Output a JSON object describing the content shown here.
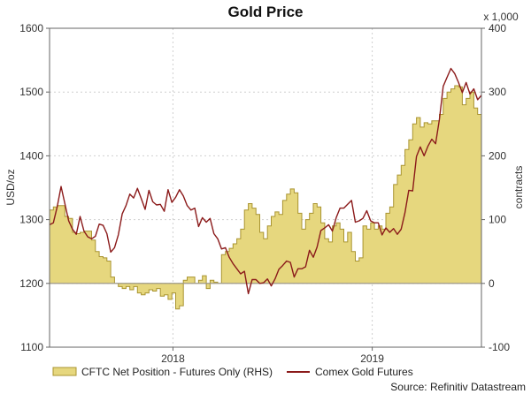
{
  "chart_data": {
    "type": "line",
    "title": "Gold Price",
    "ylabel": "USD/oz",
    "y2label": "contracts",
    "y2_multiplier": "x 1,000",
    "ylim": [
      1100,
      1600
    ],
    "y2lim": [
      -100,
      400
    ],
    "yticks": [
      1100,
      1200,
      1300,
      1400,
      1500,
      1600
    ],
    "y2ticks": [
      -100,
      0,
      100,
      200,
      300,
      400
    ],
    "xlim": [
      "2017-08-18",
      "2019-10-18"
    ],
    "xticks": [
      {
        "label": "2018",
        "date": "2018-04-01"
      },
      {
        "label": "2019",
        "date": "2019-04-01"
      }
    ],
    "grid": true,
    "legend_position": "bottom",
    "source": "Source: Refinitiv Datastream",
    "colors": {
      "area_fill": "#e6d77e",
      "area_stroke": "#a99430",
      "line": "#8b1a1a"
    },
    "series": [
      {
        "name": "CFTC Net Position - Futures Only (RHS)",
        "type": "area",
        "axis": "right",
        "points": [
          [
            "2017-08-18",
            115
          ],
          [
            "2017-08-25",
            120
          ],
          [
            "2017-09-01",
            122
          ],
          [
            "2017-09-08",
            122
          ],
          [
            "2017-09-15",
            105
          ],
          [
            "2017-09-22",
            102
          ],
          [
            "2017-09-29",
            80
          ],
          [
            "2017-10-06",
            78
          ],
          [
            "2017-10-13",
            80
          ],
          [
            "2017-10-20",
            82
          ],
          [
            "2017-10-27",
            82
          ],
          [
            "2017-11-03",
            68
          ],
          [
            "2017-11-10",
            50
          ],
          [
            "2017-11-17",
            42
          ],
          [
            "2017-11-24",
            40
          ],
          [
            "2017-12-01",
            35
          ],
          [
            "2017-12-08",
            10
          ],
          [
            "2017-12-15",
            0
          ],
          [
            "2017-12-22",
            -5
          ],
          [
            "2017-12-29",
            -8
          ],
          [
            "2018-01-05",
            -5
          ],
          [
            "2018-01-12",
            -10
          ],
          [
            "2018-01-19",
            -5
          ],
          [
            "2018-01-26",
            -15
          ],
          [
            "2018-02-02",
            -18
          ],
          [
            "2018-02-09",
            -15
          ],
          [
            "2018-02-16",
            -10
          ],
          [
            "2018-02-23",
            -12
          ],
          [
            "2018-03-02",
            -8
          ],
          [
            "2018-03-09",
            -20
          ],
          [
            "2018-03-16",
            -18
          ],
          [
            "2018-03-23",
            -25
          ],
          [
            "2018-03-30",
            -15
          ],
          [
            "2018-04-06",
            -40
          ],
          [
            "2018-04-13",
            -35
          ],
          [
            "2018-04-20",
            5
          ],
          [
            "2018-04-27",
            10
          ],
          [
            "2018-05-04",
            10
          ],
          [
            "2018-05-11",
            0
          ],
          [
            "2018-05-18",
            5
          ],
          [
            "2018-05-25",
            12
          ],
          [
            "2018-06-01",
            -8
          ],
          [
            "2018-06-08",
            5
          ],
          [
            "2018-06-15",
            2
          ],
          [
            "2018-06-22",
            0
          ],
          [
            "2018-06-29",
            45
          ],
          [
            "2018-07-06",
            50
          ],
          [
            "2018-07-13",
            55
          ],
          [
            "2018-07-20",
            62
          ],
          [
            "2018-07-27",
            70
          ],
          [
            "2018-08-03",
            85
          ],
          [
            "2018-08-10",
            115
          ],
          [
            "2018-08-17",
            125
          ],
          [
            "2018-08-24",
            118
          ],
          [
            "2018-08-31",
            108
          ],
          [
            "2018-09-07",
            80
          ],
          [
            "2018-09-14",
            70
          ],
          [
            "2018-09-21",
            90
          ],
          [
            "2018-09-28",
            105
          ],
          [
            "2018-10-05",
            112
          ],
          [
            "2018-10-12",
            108
          ],
          [
            "2018-10-19",
            130
          ],
          [
            "2018-10-26",
            140
          ],
          [
            "2018-11-02",
            148
          ],
          [
            "2018-11-09",
            142
          ],
          [
            "2018-11-16",
            110
          ],
          [
            "2018-11-23",
            85
          ],
          [
            "2018-11-30",
            100
          ],
          [
            "2018-12-07",
            110
          ],
          [
            "2018-12-14",
            125
          ],
          [
            "2018-12-21",
            120
          ],
          [
            "2018-12-28",
            95
          ],
          [
            "2019-01-04",
            70
          ],
          [
            "2019-01-11",
            65
          ],
          [
            "2019-01-18",
            90
          ],
          [
            "2019-01-25",
            95
          ],
          [
            "2019-02-01",
            85
          ],
          [
            "2019-02-08",
            65
          ],
          [
            "2019-02-15",
            80
          ],
          [
            "2019-02-22",
            50
          ],
          [
            "2019-03-01",
            35
          ],
          [
            "2019-03-08",
            40
          ],
          [
            "2019-03-15",
            90
          ],
          [
            "2019-03-22",
            85
          ],
          [
            "2019-03-29",
            95
          ],
          [
            "2019-04-05",
            85
          ],
          [
            "2019-04-12",
            90
          ],
          [
            "2019-04-19",
            85
          ],
          [
            "2019-04-26",
            110
          ],
          [
            "2019-05-03",
            120
          ],
          [
            "2019-05-10",
            155
          ],
          [
            "2019-05-17",
            170
          ],
          [
            "2019-05-24",
            185
          ],
          [
            "2019-05-31",
            210
          ],
          [
            "2019-06-07",
            225
          ],
          [
            "2019-06-14",
            250
          ],
          [
            "2019-06-21",
            260
          ],
          [
            "2019-06-28",
            245
          ],
          [
            "2019-07-05",
            252
          ],
          [
            "2019-07-12",
            250
          ],
          [
            "2019-07-19",
            255
          ],
          [
            "2019-07-26",
            255
          ],
          [
            "2019-08-02",
            265
          ],
          [
            "2019-08-09",
            290
          ],
          [
            "2019-08-16",
            300
          ],
          [
            "2019-08-23",
            305
          ],
          [
            "2019-08-30",
            310
          ],
          [
            "2019-09-06",
            308
          ],
          [
            "2019-09-13",
            280
          ],
          [
            "2019-09-20",
            290
          ],
          [
            "2019-09-27",
            300
          ],
          [
            "2019-10-04",
            275
          ],
          [
            "2019-10-11",
            265
          ],
          [
            "2019-10-18",
            255
          ]
        ]
      },
      {
        "name": "Comex Gold Futures",
        "type": "line",
        "axis": "left",
        "points": [
          [
            "2017-08-18",
            1292
          ],
          [
            "2017-08-25",
            1295
          ],
          [
            "2017-09-01",
            1320
          ],
          [
            "2017-09-08",
            1352
          ],
          [
            "2017-09-15",
            1325
          ],
          [
            "2017-09-22",
            1298
          ],
          [
            "2017-09-29",
            1285
          ],
          [
            "2017-10-06",
            1277
          ],
          [
            "2017-10-13",
            1305
          ],
          [
            "2017-10-20",
            1282
          ],
          [
            "2017-10-27",
            1273
          ],
          [
            "2017-11-03",
            1270
          ],
          [
            "2017-11-10",
            1274
          ],
          [
            "2017-11-17",
            1293
          ],
          [
            "2017-11-24",
            1291
          ],
          [
            "2017-12-01",
            1278
          ],
          [
            "2017-12-08",
            1249
          ],
          [
            "2017-12-15",
            1256
          ],
          [
            "2017-12-22",
            1276
          ],
          [
            "2017-12-29",
            1309
          ],
          [
            "2018-01-05",
            1322
          ],
          [
            "2018-01-12",
            1340
          ],
          [
            "2018-01-19",
            1334
          ],
          [
            "2018-01-26",
            1349
          ],
          [
            "2018-02-02",
            1333
          ],
          [
            "2018-02-09",
            1316
          ],
          [
            "2018-02-16",
            1346
          ],
          [
            "2018-02-23",
            1328
          ],
          [
            "2018-03-02",
            1323
          ],
          [
            "2018-03-09",
            1324
          ],
          [
            "2018-03-16",
            1313
          ],
          [
            "2018-03-23",
            1347
          ],
          [
            "2018-03-30",
            1327
          ],
          [
            "2018-04-06",
            1335
          ],
          [
            "2018-04-13",
            1347
          ],
          [
            "2018-04-20",
            1337
          ],
          [
            "2018-04-27",
            1322
          ],
          [
            "2018-05-04",
            1315
          ],
          [
            "2018-05-11",
            1318
          ],
          [
            "2018-05-18",
            1289
          ],
          [
            "2018-05-25",
            1303
          ],
          [
            "2018-06-01",
            1296
          ],
          [
            "2018-06-08",
            1302
          ],
          [
            "2018-06-15",
            1278
          ],
          [
            "2018-06-22",
            1270
          ],
          [
            "2018-06-29",
            1254
          ],
          [
            "2018-07-06",
            1256
          ],
          [
            "2018-07-13",
            1241
          ],
          [
            "2018-07-20",
            1231
          ],
          [
            "2018-07-27",
            1223
          ],
          [
            "2018-08-03",
            1215
          ],
          [
            "2018-08-10",
            1219
          ],
          [
            "2018-08-17",
            1184
          ],
          [
            "2018-08-24",
            1206
          ],
          [
            "2018-08-31",
            1206
          ],
          [
            "2018-09-07",
            1200
          ],
          [
            "2018-09-14",
            1201
          ],
          [
            "2018-09-21",
            1207
          ],
          [
            "2018-09-28",
            1196
          ],
          [
            "2018-10-05",
            1207
          ],
          [
            "2018-10-12",
            1222
          ],
          [
            "2018-10-19",
            1228
          ],
          [
            "2018-10-26",
            1235
          ],
          [
            "2018-11-02",
            1233
          ],
          [
            "2018-11-09",
            1210
          ],
          [
            "2018-11-16",
            1223
          ],
          [
            "2018-11-23",
            1223
          ],
          [
            "2018-11-30",
            1226
          ],
          [
            "2018-12-07",
            1252
          ],
          [
            "2018-12-14",
            1241
          ],
          [
            "2018-12-21",
            1257
          ],
          [
            "2018-12-28",
            1283
          ],
          [
            "2019-01-04",
            1287
          ],
          [
            "2019-01-11",
            1292
          ],
          [
            "2019-01-18",
            1282
          ],
          [
            "2019-01-25",
            1303
          ],
          [
            "2019-02-01",
            1318
          ],
          [
            "2019-02-08",
            1318
          ],
          [
            "2019-02-15",
            1324
          ],
          [
            "2019-02-22",
            1330
          ],
          [
            "2019-03-01",
            1296
          ],
          [
            "2019-03-08",
            1298
          ],
          [
            "2019-03-15",
            1302
          ],
          [
            "2019-03-22",
            1314
          ],
          [
            "2019-03-29",
            1298
          ],
          [
            "2019-04-05",
            1295
          ],
          [
            "2019-04-12",
            1295
          ],
          [
            "2019-04-19",
            1276
          ],
          [
            "2019-04-26",
            1287
          ],
          [
            "2019-05-03",
            1280
          ],
          [
            "2019-05-10",
            1286
          ],
          [
            "2019-05-17",
            1277
          ],
          [
            "2019-05-24",
            1285
          ],
          [
            "2019-05-31",
            1311
          ],
          [
            "2019-06-07",
            1346
          ],
          [
            "2019-06-14",
            1345
          ],
          [
            "2019-06-21",
            1399
          ],
          [
            "2019-06-28",
            1414
          ],
          [
            "2019-07-05",
            1400
          ],
          [
            "2019-07-12",
            1415
          ],
          [
            "2019-07-19",
            1426
          ],
          [
            "2019-07-26",
            1419
          ],
          [
            "2019-08-02",
            1457
          ],
          [
            "2019-08-09",
            1509
          ],
          [
            "2019-08-16",
            1523
          ],
          [
            "2019-08-23",
            1537
          ],
          [
            "2019-08-30",
            1529
          ],
          [
            "2019-09-06",
            1515
          ],
          [
            "2019-09-13",
            1499
          ],
          [
            "2019-09-20",
            1515
          ],
          [
            "2019-09-27",
            1497
          ],
          [
            "2019-10-04",
            1505
          ],
          [
            "2019-10-11",
            1488
          ],
          [
            "2019-10-18",
            1495
          ]
        ]
      }
    ]
  }
}
